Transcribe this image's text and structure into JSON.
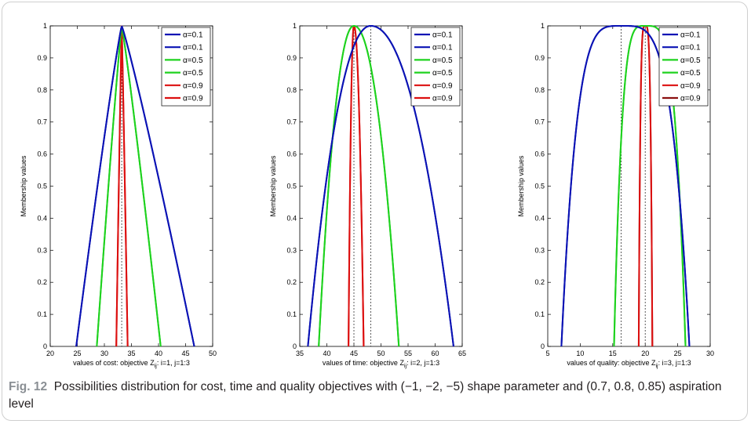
{
  "caption": {
    "label": "Fig. 12",
    "text": "Possibilities distribution for cost, time and quality objectives with (−1, −2, −5) shape parameter and (0.7, 0.8, 0.85) aspiration level"
  },
  "legend_entries": [
    "α=0.1",
    "α=0.1",
    "α=0.5",
    "α=0.5",
    "α=0.9",
    "α=0.9"
  ],
  "chart_data": [
    {
      "type": "line",
      "xlabel_pre": "values of cost: objective Z",
      "xlabel_sub": "ij",
      "xlabel_post": ": i=1, j=1:3",
      "ylabel": "Membership values",
      "xlim": [
        20,
        50
      ],
      "ylim": [
        0,
        1
      ],
      "xticks": [
        20,
        25,
        30,
        35,
        40,
        45,
        50
      ],
      "yticks": [
        0,
        0.1,
        0.2,
        0.3,
        0.4,
        0.5,
        0.6,
        0.7,
        0.8,
        0.9,
        1
      ],
      "peak_marker": 33.2,
      "legend_position": "top-right",
      "series": [
        {
          "name": "α=0.1",
          "color": "#0a12b4",
          "shape": "power",
          "peak": 33.2,
          "left": 24.8,
          "right": 46.6,
          "exponent": 1.1
        },
        {
          "name": "α=0.1",
          "color": "#0a12b4",
          "shape": "power",
          "peak": 33.2,
          "left": 24.8,
          "right": 46.6,
          "exponent": 1.1
        },
        {
          "name": "α=0.5",
          "color": "#1ed21e",
          "shape": "power",
          "peak": 33.2,
          "left": 28.6,
          "right": 40.4,
          "exponent": 1.1
        },
        {
          "name": "α=0.5",
          "color": "#1ed21e",
          "shape": "power",
          "peak": 33.2,
          "left": 28.6,
          "right": 40.4,
          "exponent": 1.1
        },
        {
          "name": "α=0.9",
          "color": "#dc0f0f",
          "shape": "power",
          "peak": 33.2,
          "left": 32.2,
          "right": 34.3,
          "exponent": 1.1
        },
        {
          "name": "α=0.9",
          "color": "#dc0f0f",
          "shape": "power",
          "peak": 33.2,
          "left": 32.2,
          "right": 34.3,
          "exponent": 1.1
        }
      ]
    },
    {
      "type": "line",
      "xlabel_pre": "values of time: objective Z",
      "xlabel_sub": "ij",
      "xlabel_post": ": i=2, j=1:3",
      "ylabel": "Membership values",
      "xlim": [
        35,
        65
      ],
      "ylim": [
        0,
        1
      ],
      "xticks": [
        35,
        40,
        45,
        50,
        55,
        60,
        65
      ],
      "yticks": [
        0,
        0.1,
        0.2,
        0.3,
        0.4,
        0.5,
        0.6,
        0.7,
        0.8,
        0.9,
        1
      ],
      "peak_marker": 48.1,
      "peak_marker_2": 45.0,
      "legend_position": "top-right",
      "series": [
        {
          "name": "α=0.1",
          "color": "#0a12b4",
          "shape": "power",
          "peak": 48.1,
          "left": 36.5,
          "right": 63.4,
          "exponent": 2.1
        },
        {
          "name": "α=0.1",
          "color": "#0a12b4",
          "shape": "power",
          "peak": 48.1,
          "left": 36.5,
          "right": 63.4,
          "exponent": 2.1
        },
        {
          "name": "α=0.5",
          "color": "#1ed21e",
          "shape": "power",
          "peak": 45.0,
          "left": 38.5,
          "right": 53.3,
          "exponent": 2.1
        },
        {
          "name": "α=0.5",
          "color": "#1ed21e",
          "shape": "power",
          "peak": 45.0,
          "left": 38.5,
          "right": 53.3,
          "exponent": 2.1
        },
        {
          "name": "α=0.9",
          "color": "#dc0f0f",
          "shape": "power",
          "peak": 45.0,
          "left": 44.0,
          "right": 46.8,
          "exponent": 2.1
        },
        {
          "name": "α=0.9",
          "color": "#dc0f0f",
          "shape": "power",
          "peak": 45.0,
          "left": 44.0,
          "right": 46.8,
          "exponent": 2.1
        }
      ]
    },
    {
      "type": "line",
      "xlabel_pre": "values of quality: objective Z",
      "xlabel_sub": "ij",
      "xlabel_post": ": i=3, j=1:3",
      "ylabel": "Membership values",
      "xlim": [
        5,
        30
      ],
      "ylim": [
        0,
        1
      ],
      "xticks": [
        5,
        10,
        15,
        20,
        25,
        30
      ],
      "yticks": [
        0,
        0.1,
        0.2,
        0.3,
        0.4,
        0.5,
        0.6,
        0.7,
        0.8,
        0.9,
        1
      ],
      "peak_marker": 16.3,
      "peak_marker_2": 20.0,
      "legend_position": "top-right",
      "series": [
        {
          "name": "α=0.1",
          "color": "#0a12b4",
          "shape": "power",
          "peak": 16.3,
          "left": 7.1,
          "right": 26.8,
          "exponent": 4.0
        },
        {
          "name": "α=0.1",
          "color": "#0a12b4",
          "shape": "power",
          "peak": 16.3,
          "left": 7.1,
          "right": 26.8,
          "exponent": 4.0
        },
        {
          "name": "α=0.5",
          "color": "#1ed21e",
          "shape": "power",
          "peak": 20.0,
          "left": 15.2,
          "right": 26.2,
          "exponent": 4.0
        },
        {
          "name": "α=0.5",
          "color": "#1ed21e",
          "shape": "power",
          "peak": 20.0,
          "left": 15.2,
          "right": 26.2,
          "exponent": 4.0
        },
        {
          "name": "α=0.9",
          "color": "#dc0f0f",
          "shape": "power",
          "peak": 20.0,
          "left": 19.0,
          "right": 21.1,
          "exponent": 4.0
        },
        {
          "name": "α=0.9",
          "color": "#8b1010",
          "shape": "power",
          "peak": 20.0,
          "left": 19.0,
          "right": 21.1,
          "exponent": 4.0
        }
      ]
    }
  ]
}
